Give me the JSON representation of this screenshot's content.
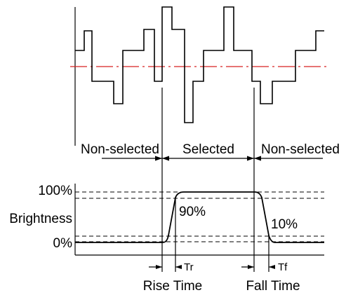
{
  "diagram": {
    "labels": {
      "non_selected_left": "Non-selected",
      "selected": "Selected",
      "non_selected_right": "Non-selected",
      "brightness": "Brightness",
      "pct_100": "100%",
      "pct_90": "90%",
      "pct_10": "10%",
      "pct_0": "0%",
      "tr": "Tr",
      "tf": "Tf",
      "rise_time": "Rise Time",
      "fall_time": "Fall Time"
    },
    "colors": {
      "line": "#000000",
      "reference_line": "#d62020",
      "background": "#ffffff"
    }
  }
}
